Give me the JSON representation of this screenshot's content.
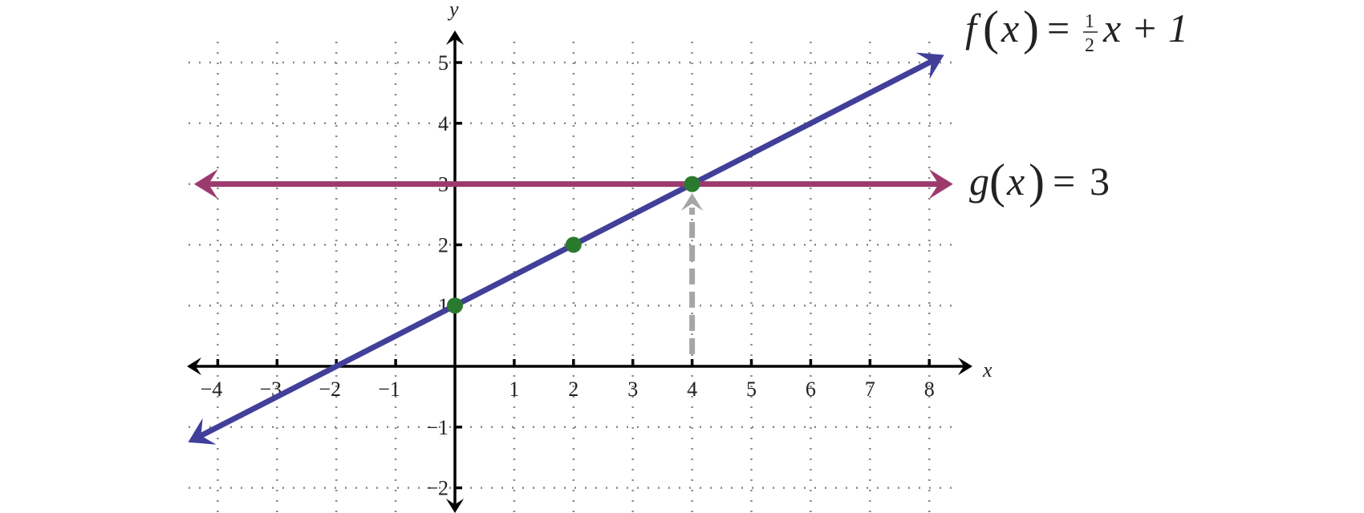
{
  "chart_data": {
    "type": "line",
    "title": "",
    "xlabel": "x",
    "ylabel": "y",
    "xlim": [
      -4,
      8
    ],
    "ylim": [
      -2,
      5
    ],
    "x_ticks": [
      -4,
      -3,
      -2,
      -1,
      1,
      2,
      3,
      4,
      5,
      6,
      7,
      8
    ],
    "y_ticks": [
      -2,
      -1,
      1,
      2,
      3,
      4,
      5
    ],
    "grid": true,
    "series": [
      {
        "name": "f(x) = ½x + 1",
        "label_func": "f",
        "label_rhs_frac": [
          "1",
          "2"
        ],
        "label_rhs_rest": "x + 1",
        "slope": 0.5,
        "intercept": 1,
        "x_range": [
          -4.5,
          8.25
        ],
        "color": "#413f99"
      },
      {
        "name": "g(x) = 3",
        "label_func": "g",
        "label_rhs": "3",
        "slope": 0,
        "intercept": 3,
        "x_range": [
          -4.4,
          8.4
        ],
        "color": "#9c3a6e"
      }
    ],
    "points": [
      {
        "x": 0,
        "y": 1
      },
      {
        "x": 2,
        "y": 2
      },
      {
        "x": 4,
        "y": 3
      }
    ],
    "point_color": "#2a7a2e",
    "annotation": {
      "type": "dashed-arrow",
      "x": 4,
      "from_y": 0.2,
      "to_y": 2.85,
      "color": "#a6a6a8"
    }
  }
}
